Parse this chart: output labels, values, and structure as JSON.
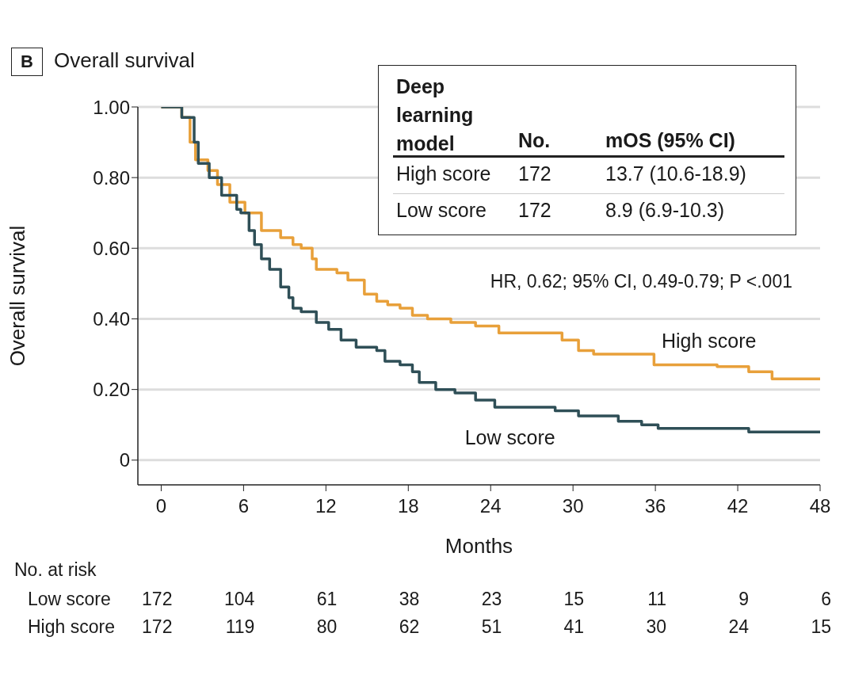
{
  "chart_data": {
    "type": "step",
    "title": "Overall survival",
    "xlabel": "Months",
    "ylabel": "Overall survival",
    "legend_title": "Deep learning model",
    "xlim": [
      -1.7,
      48
    ],
    "xticks": [
      0,
      6,
      12,
      18,
      24,
      30,
      36,
      42,
      48
    ],
    "ylim": [
      -0.07,
      1.0
    ],
    "yticks": [
      {
        "value": 0,
        "label": "0"
      },
      {
        "value": 0.2,
        "label": "0.20"
      },
      {
        "value": 0.4,
        "label": "0.40"
      },
      {
        "value": 0.6,
        "label": "0.60"
      },
      {
        "value": 0.8,
        "label": "0.80"
      },
      {
        "value": 1.0,
        "label": "1.00"
      }
    ],
    "grid": "y",
    "marker": "none",
    "line_style": "solid",
    "series": [
      {
        "name": "High score",
        "color": "#e8a03a",
        "x": [
          0,
          1.5,
          2.1,
          2.5,
          3.4,
          4.1,
          5.0,
          6.1,
          7.3,
          8.7,
          9.6,
          10.2,
          11.0,
          11.3,
          12.8,
          13.6,
          14.8,
          15.7,
          16.5,
          17.4,
          18.3,
          19.4,
          21.1,
          22.9,
          24.6,
          28.7,
          29.2,
          30.4,
          31.5,
          35.0,
          35.9,
          40.5,
          42.8,
          44.5,
          48
        ],
        "values": [
          1.0,
          0.97,
          0.9,
          0.85,
          0.82,
          0.78,
          0.73,
          0.7,
          0.65,
          0.63,
          0.61,
          0.6,
          0.57,
          0.54,
          0.53,
          0.51,
          0.47,
          0.45,
          0.44,
          0.43,
          0.41,
          0.4,
          0.39,
          0.38,
          0.36,
          0.36,
          0.34,
          0.31,
          0.3,
          0.3,
          0.27,
          0.265,
          0.25,
          0.23,
          0.23
        ]
      },
      {
        "name": "Low score",
        "color": "#2f4f57",
        "x": [
          0,
          1.5,
          2.4,
          2.7,
          3.5,
          4.4,
          5.5,
          5.8,
          6.4,
          6.8,
          7.3,
          7.9,
          8.7,
          9.3,
          9.6,
          10.2,
          11.3,
          12.2,
          13.1,
          14.2,
          15.7,
          16.3,
          17.4,
          18.3,
          18.8,
          20.0,
          21.4,
          22.9,
          24.3,
          28.7,
          30.4,
          33.3,
          35.0,
          36.2,
          42.8,
          48
        ],
        "values": [
          1.0,
          0.97,
          0.9,
          0.84,
          0.8,
          0.75,
          0.71,
          0.7,
          0.65,
          0.61,
          0.57,
          0.54,
          0.49,
          0.46,
          0.43,
          0.42,
          0.39,
          0.37,
          0.34,
          0.32,
          0.31,
          0.28,
          0.27,
          0.25,
          0.22,
          0.2,
          0.19,
          0.17,
          0.15,
          0.14,
          0.125,
          0.11,
          0.1,
          0.09,
          0.08,
          0.08
        ]
      }
    ],
    "annotations": [
      "B",
      "HR, 0.62; 95% CI, 0.49-0.79; P <.001",
      "No.",
      "mOS (95% CI)",
      "High score",
      "172",
      "13.7 (10.6-18.9)",
      "Low score",
      "172",
      "8.9 (6.9-10.3)",
      "No. at risk",
      "Low score",
      "172",
      "104",
      "61",
      "38",
      "23",
      "15",
      "11",
      "9",
      "6",
      "High score",
      "172",
      "119",
      "80",
      "62",
      "51",
      "41",
      "30",
      "24",
      "15"
    ]
  }
}
